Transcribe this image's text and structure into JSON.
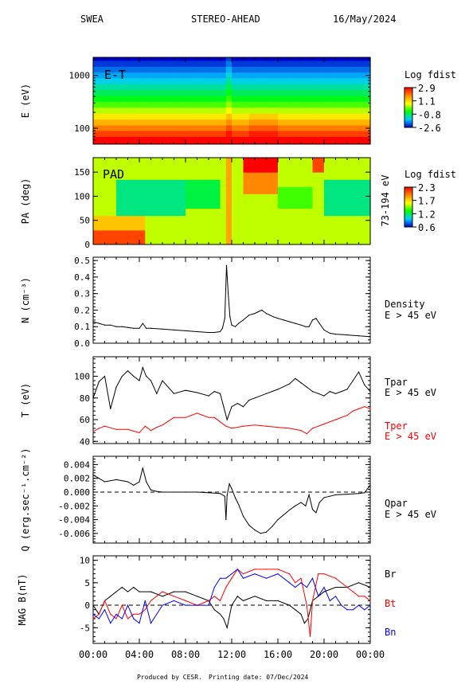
{
  "header": {
    "instrument": "SWEA",
    "spacecraft": "STEREO-AHEAD",
    "date": "16/May/2024"
  },
  "footer": {
    "produced_by": "Produced by CESR.",
    "printing_date": "Printing date: 07/Dec/2024"
  },
  "colors": {
    "black": "#000000",
    "red": "#ff0000",
    "blue": "#0000ff",
    "zero_line": "#000000"
  },
  "chart_data": [
    {
      "id": "et",
      "type": "heatmap",
      "panel_label": "E-T",
      "ylabel": "E (eV)",
      "yscale": "log",
      "ylim": [
        50,
        2200
      ],
      "yticks": [
        100,
        1000
      ],
      "ytick_labels": [
        "100",
        "1000"
      ],
      "colorbar": {
        "title": "Log fdist",
        "range": [
          -2.6,
          2.9
        ],
        "ticks": [
          "2.9",
          "1.1",
          "-0.8",
          "-2.6"
        ]
      },
      "energy_bins": [
        2150,
        1650,
        1280,
        1000,
        780,
        600,
        470,
        360,
        280,
        215,
        165,
        128,
        100,
        78,
        60
      ],
      "row_values": [
        -2.6,
        -2.3,
        -2.0,
        -1.7,
        -1.4,
        -1.1,
        -0.8,
        -0.5,
        -0.1,
        0.4,
        0.9,
        1.4,
        1.9,
        2.4,
        2.9
      ]
    },
    {
      "id": "pad",
      "type": "heatmap",
      "panel_label": "PAD",
      "ylabel": "PA (deg)",
      "ylim": [
        0,
        180
      ],
      "yticks": [
        0,
        50,
        100,
        150
      ],
      "right_label": "73-194 eV",
      "colorbar": {
        "title": "Log fdist",
        "range": [
          0.6,
          2.3
        ],
        "ticks": [
          "2.3",
          "1.7",
          "1.2",
          "0.6"
        ]
      }
    },
    {
      "id": "density",
      "type": "line",
      "ylabel": "N (cm⁻³)",
      "ylim": [
        0.0,
        0.52
      ],
      "yticks": [
        0.0,
        0.1,
        0.2,
        0.3,
        0.4,
        0.5
      ],
      "ytick_labels": [
        "0.0",
        "0.1",
        "0.2",
        "0.3",
        "0.4",
        "0.5"
      ],
      "zero_line": 0.0,
      "right_labels": [
        "Density",
        "E > 45 eV"
      ],
      "series": [
        {
          "color": "#000000",
          "x": [
            0,
            0.5,
            1,
            1.5,
            2,
            2.5,
            3,
            3.5,
            4,
            4.3,
            4.6,
            5,
            6,
            7,
            8,
            9,
            10,
            10.5,
            11,
            11.2,
            11.4,
            11.55,
            11.7,
            11.85,
            12,
            12.3,
            12.6,
            13,
            13.5,
            14,
            14.3,
            14.6,
            15,
            15.3,
            15.6,
            16,
            16.5,
            17,
            17.5,
            18,
            18.4,
            18.7,
            19,
            19.3,
            19.6,
            20,
            20.5,
            21,
            22,
            23,
            24
          ],
          "y": [
            0.13,
            0.12,
            0.11,
            0.11,
            0.1,
            0.1,
            0.095,
            0.09,
            0.09,
            0.12,
            0.09,
            0.09,
            0.085,
            0.08,
            0.075,
            0.07,
            0.065,
            0.065,
            0.07,
            0.09,
            0.15,
            0.47,
            0.3,
            0.16,
            0.11,
            0.1,
            0.12,
            0.14,
            0.17,
            0.18,
            0.19,
            0.2,
            0.18,
            0.17,
            0.16,
            0.15,
            0.14,
            0.13,
            0.12,
            0.11,
            0.1,
            0.1,
            0.14,
            0.15,
            0.12,
            0.08,
            0.06,
            0.055,
            0.05,
            0.045,
            0.04
          ]
        }
      ]
    },
    {
      "id": "temperature",
      "type": "line",
      "ylabel": "T (eV)",
      "ylim": [
        38,
        118
      ],
      "yticks": [
        40,
        60,
        80,
        100
      ],
      "ytick_labels": [
        "40",
        "60",
        "80",
        "100"
      ],
      "right_labels": [
        {
          "text": "Tpar",
          "color": "#000000"
        },
        {
          "text": "E > 45 eV",
          "color": "#000000"
        },
        {
          "text": "Tper",
          "color": "#ff0000"
        },
        {
          "text": "E > 45 eV",
          "color": "#ff0000"
        }
      ],
      "series": [
        {
          "color": "#000000",
          "x": [
            0,
            0.5,
            1,
            1.5,
            2,
            2.5,
            3,
            3.5,
            4,
            4.3,
            4.6,
            5,
            5.5,
            6,
            7,
            8,
            9,
            10,
            10.5,
            11,
            11.3,
            11.6,
            12,
            12.5,
            13,
            13.5,
            14,
            15,
            16,
            17,
            17.5,
            18,
            18.5,
            19,
            19.5,
            20,
            20.5,
            21,
            21.5,
            22,
            22.5,
            23,
            23.5,
            24
          ],
          "y": [
            80,
            95,
            100,
            70,
            90,
            100,
            105,
            100,
            96,
            108,
            100,
            96,
            84,
            96,
            84,
            87,
            85,
            82,
            86,
            84,
            72,
            60,
            72,
            75,
            72,
            78,
            80,
            84,
            88,
            93,
            98,
            94,
            90,
            86,
            84,
            82,
            86,
            84,
            86,
            88,
            96,
            104,
            92,
            86
          ]
        },
        {
          "color": "#ff0000",
          "x": [
            0,
            0.5,
            1,
            2,
            3,
            4,
            4.5,
            5,
            5.5,
            6,
            7,
            8,
            9,
            10,
            10.5,
            11,
            11.5,
            12,
            13,
            14,
            15,
            16,
            17,
            18,
            18.5,
            19,
            20,
            21,
            22,
            22.5,
            23,
            23.5,
            24
          ],
          "y": [
            49,
            52,
            54,
            51,
            51,
            48,
            54,
            50,
            53,
            55,
            62,
            62,
            66,
            62,
            62,
            58,
            54,
            52,
            54,
            55,
            54,
            53,
            52,
            50,
            47,
            52,
            56,
            60,
            64,
            68,
            70,
            72,
            70
          ]
        }
      ]
    },
    {
      "id": "heatflux",
      "type": "line",
      "ylabel": "Q (erg.sec⁻¹.cm⁻²)",
      "ylim": [
        -0.0074,
        0.0052
      ],
      "yticks": [
        -0.006,
        -0.004,
        -0.002,
        0.0,
        0.002,
        0.004
      ],
      "ytick_labels": [
        "-0.006",
        "-0.004",
        "-0.002",
        "0.000",
        "0.002",
        "0.004"
      ],
      "zero_line": 0.0,
      "right_labels": [
        "Qpar",
        "E > 45 eV"
      ],
      "series": [
        {
          "color": "#000000",
          "x": [
            0,
            0.5,
            1,
            2,
            3,
            3.5,
            4,
            4.3,
            4.6,
            5,
            5.5,
            6,
            7,
            8,
            9,
            10,
            11,
            11.4,
            11.5,
            11.6,
            11.8,
            12,
            12.3,
            12.6,
            13,
            13.5,
            14,
            14.5,
            15,
            15.5,
            16,
            16.5,
            17,
            17.5,
            18,
            18.4,
            18.7,
            19,
            19.3,
            19.6,
            20,
            20.5,
            21,
            22,
            23,
            23.5,
            24
          ],
          "y": [
            0.0025,
            0.002,
            0.0015,
            0.0018,
            0.0015,
            0.001,
            0.0015,
            0.0035,
            0.0015,
            0.0003,
            0.0001,
            0.0,
            0.0,
            0.0,
            0.0,
            -0.0001,
            -0.0002,
            -0.0006,
            -0.004,
            -0.0005,
            0.0012,
            0.0005,
            -0.0008,
            -0.0018,
            -0.0035,
            -0.0048,
            -0.0055,
            -0.006,
            -0.0058,
            -0.005,
            -0.004,
            -0.0033,
            -0.0026,
            -0.002,
            -0.0015,
            -0.002,
            -0.0004,
            -0.0025,
            -0.003,
            -0.0015,
            -0.0008,
            -0.0006,
            -0.0004,
            -0.0003,
            -0.0002,
            -0.0001,
            0.001
          ]
        }
      ]
    },
    {
      "id": "mag",
      "type": "line",
      "ylabel": "MAG B(nT)",
      "ylim": [
        -8.5,
        11
      ],
      "yticks": [
        -5,
        0,
        5,
        10
      ],
      "ytick_labels": [
        "-5",
        "0",
        "5",
        "10"
      ],
      "zero_line": 0.0,
      "right_labels": [
        {
          "text": "Br",
          "color": "#000000"
        },
        {
          "text": "Bt",
          "color": "#ff0000"
        },
        {
          "text": "Bn",
          "color": "#0000ff"
        }
      ],
      "xticks": [
        0,
        4,
        8,
        12,
        16,
        20,
        24
      ],
      "xtick_labels": [
        "00:00",
        "04:00",
        "08:00",
        "12:00",
        "16:00",
        "20:00",
        "00:00"
      ],
      "series": [
        {
          "name": "Br",
          "color": "#000000",
          "x": [
            0,
            0.5,
            1,
            1.5,
            2,
            2.5,
            3,
            3.5,
            4,
            5,
            6,
            7,
            8,
            9,
            10,
            10.5,
            11,
            11.3,
            11.6,
            12,
            12.5,
            13,
            14,
            15,
            16,
            17,
            17.5,
            18,
            18.3,
            18.6,
            19,
            19.5,
            20,
            21,
            22,
            23,
            24
          ],
          "y": [
            0,
            -2,
            1,
            2,
            3,
            4,
            3,
            4,
            3,
            3,
            2,
            3,
            3,
            2,
            1,
            -1,
            -2,
            -3,
            -5,
            0,
            2,
            1,
            2,
            1,
            1,
            0,
            -1,
            -2,
            -4,
            -3,
            1,
            2,
            3,
            4,
            4,
            5,
            4
          ]
        },
        {
          "name": "Bt",
          "color": "#ff0000",
          "x": [
            0,
            0.5,
            1,
            1.5,
            2,
            2.5,
            3,
            3.5,
            4,
            4.5,
            5,
            6,
            7,
            8,
            9,
            10,
            10.5,
            11,
            11.5,
            12,
            12.5,
            13,
            14,
            15,
            16,
            17,
            17.5,
            18,
            18.5,
            18.8,
            19,
            19.5,
            20,
            21,
            22,
            22.5,
            23,
            23.5,
            24
          ],
          "y": [
            -3,
            -2,
            1,
            -2,
            -3,
            0,
            -3,
            -2,
            -2,
            -1,
            1,
            3,
            2,
            1,
            0,
            1,
            2,
            1,
            4,
            6,
            8,
            7,
            8,
            8,
            8,
            7,
            5,
            6,
            0,
            -7,
            1,
            7,
            7,
            6,
            4,
            3,
            2,
            2,
            1
          ]
        },
        {
          "name": "Bn",
          "color": "#0000ff",
          "x": [
            0,
            0.5,
            1,
            1.5,
            2,
            2.5,
            3,
            3.5,
            4,
            4.5,
            5,
            6,
            7,
            8,
            9,
            10,
            10.5,
            11,
            11.5,
            12,
            12.5,
            13,
            14,
            15,
            16,
            17,
            17.5,
            18,
            18.5,
            19,
            19.5,
            20,
            20.5,
            21,
            21.5,
            22,
            22.5,
            23,
            23.5,
            24
          ],
          "y": [
            -2,
            -3,
            -1,
            -4,
            -2,
            -3,
            0,
            -3,
            -4,
            1,
            -4,
            0,
            1,
            0,
            0,
            0,
            4,
            6,
            6,
            7,
            8,
            6,
            7,
            6,
            7,
            5,
            4,
            5,
            4,
            6,
            2,
            4,
            1,
            2,
            0,
            -1,
            -1,
            0,
            -1,
            0
          ]
        }
      ]
    }
  ]
}
